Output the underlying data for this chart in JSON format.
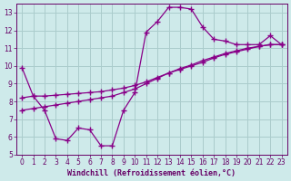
{
  "xlabel": "Windchill (Refroidissement éolien,°C)",
  "background_color": "#ceeaea",
  "grid_color": "#aacccc",
  "line_color": "#880088",
  "xlim": [
    -0.5,
    23.5
  ],
  "ylim": [
    5,
    13.5
  ],
  "xticks": [
    0,
    1,
    2,
    3,
    4,
    5,
    6,
    7,
    8,
    9,
    10,
    11,
    12,
    13,
    14,
    15,
    16,
    17,
    18,
    19,
    20,
    21,
    22,
    23
  ],
  "yticks": [
    5,
    6,
    7,
    8,
    9,
    10,
    11,
    12,
    13
  ],
  "line1_x": [
    0,
    1,
    2,
    3,
    4,
    5,
    6,
    7,
    8,
    9,
    10,
    11,
    12,
    13,
    14,
    15,
    16,
    17,
    18,
    19,
    20,
    21,
    22,
    23
  ],
  "line1_y": [
    9.9,
    8.3,
    7.5,
    5.9,
    5.8,
    6.5,
    6.4,
    5.5,
    5.5,
    7.5,
    8.5,
    11.9,
    12.5,
    13.3,
    13.3,
    13.2,
    12.2,
    11.5,
    11.4,
    11.2,
    11.2,
    11.2,
    11.7,
    11.2
  ],
  "line2_x": [
    0,
    1,
    2,
    3,
    4,
    5,
    6,
    7,
    8,
    9,
    10,
    11,
    12,
    13,
    14,
    15,
    16,
    17,
    18,
    19,
    20,
    21,
    22,
    23
  ],
  "line2_y": [
    8.2,
    8.3,
    8.3,
    8.35,
    8.4,
    8.45,
    8.5,
    8.55,
    8.65,
    8.75,
    8.9,
    9.1,
    9.35,
    9.6,
    9.8,
    10.0,
    10.2,
    10.45,
    10.65,
    10.8,
    10.95,
    11.1,
    11.2,
    11.2
  ],
  "line3_x": [
    0,
    1,
    2,
    3,
    4,
    5,
    6,
    7,
    8,
    9,
    10,
    11,
    12,
    13,
    14,
    15,
    16,
    17,
    18,
    19,
    20,
    21,
    22,
    23
  ],
  "line3_y": [
    7.5,
    7.6,
    7.7,
    7.8,
    7.9,
    8.0,
    8.1,
    8.2,
    8.3,
    8.5,
    8.7,
    9.0,
    9.3,
    9.6,
    9.85,
    10.05,
    10.3,
    10.5,
    10.7,
    10.85,
    11.0,
    11.1,
    11.2,
    11.2
  ],
  "marker": "+",
  "markersize": 4,
  "linewidth": 0.9,
  "tick_fontsize": 5.5,
  "label_fontsize": 6.0
}
